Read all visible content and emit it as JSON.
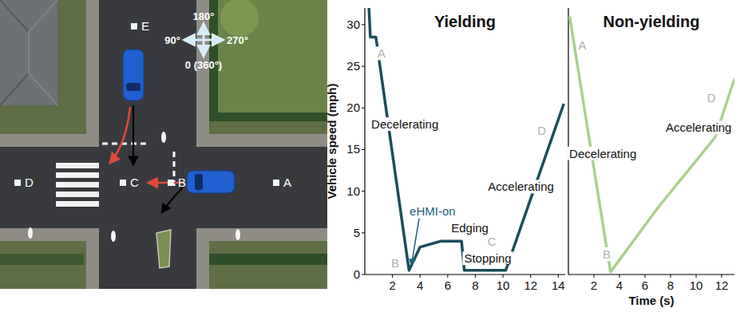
{
  "scene": {
    "points": [
      "A",
      "B",
      "C",
      "D",
      "E"
    ],
    "compass": [
      "180°",
      "90°",
      "270°",
      "0 (360°)"
    ]
  },
  "chart_data": [
    {
      "type": "line",
      "title": "Yielding",
      "ylabel": "Vehicle speed (mph)",
      "xlim": [
        0,
        14.5
      ],
      "ylim": [
        0,
        32
      ],
      "xticks": [
        2,
        4,
        6,
        8,
        10,
        12,
        14
      ],
      "yticks": [
        0,
        5,
        10,
        15,
        20,
        25,
        30
      ],
      "series": [
        {
          "color": "#1b4d5c",
          "x": [
            0.3,
            0.4,
            0.8,
            3.2,
            4.0,
            5.5,
            7.0,
            7.2,
            10.2,
            14.4
          ],
          "values": [
            32,
            28.5,
            28.5,
            0.5,
            3.3,
            4,
            4,
            0.5,
            0.5,
            20.5
          ]
        }
      ],
      "annotations": [
        {
          "text": "A",
          "x": 1.2,
          "y": 26.5,
          "color": "#b0b0b0"
        },
        {
          "text": "Decelerating",
          "x": 2.9,
          "y": 18,
          "color": "#111111"
        },
        {
          "text": "B",
          "x": 2.2,
          "y": 1.3,
          "color": "#b0b0b0"
        },
        {
          "text": "eHMI-on",
          "x": 4.9,
          "y": 7.6,
          "color": "#1d5f7a",
          "marker": "arrow"
        },
        {
          "text": "Edging",
          "x": 7.6,
          "y": 5.6,
          "color": "#111111"
        },
        {
          "text": "C",
          "x": 9.2,
          "y": 3.9,
          "color": "#b0b0b0"
        },
        {
          "text": "Stopping",
          "x": 8.9,
          "y": 1.9,
          "color": "#111111"
        },
        {
          "text": "Accelerating",
          "x": 11.3,
          "y": 10.5,
          "color": "#111111"
        },
        {
          "text": "D",
          "x": 12.8,
          "y": 17.2,
          "color": "#b0b0b0"
        }
      ]
    },
    {
      "type": "line",
      "title": "Non-yielding",
      "xlabel": "Time (s)",
      "xlim": [
        0,
        13
      ],
      "ylim": [
        0,
        32
      ],
      "xticks": [
        2,
        4,
        6,
        8,
        10,
        12
      ],
      "tick_labels": "x",
      "series": [
        {
          "color": "#a9d18e",
          "x": [
            0.1,
            3.3,
            7.0,
            11.5,
            13.0
          ],
          "values": [
            31,
            0.3,
            8,
            16.5,
            23.5
          ]
        }
      ],
      "annotations": [
        {
          "text": "A",
          "x": 1.1,
          "y": 27.5,
          "color": "#b0b0b0"
        },
        {
          "text": "Decelerating",
          "x": 2.7,
          "y": 14.5,
          "color": "#111111"
        },
        {
          "text": "B",
          "x": 3.0,
          "y": 2.4,
          "color": "#b0b0b0"
        },
        {
          "text": "Accelerating",
          "x": 10.2,
          "y": 17.6,
          "color": "#111111"
        },
        {
          "text": "D",
          "x": 11.2,
          "y": 21.2,
          "color": "#b0b0b0"
        }
      ]
    }
  ]
}
